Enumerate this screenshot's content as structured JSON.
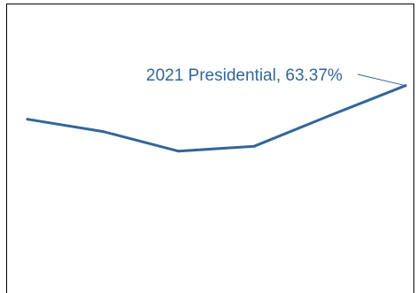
{
  "chart_data": {
    "type": "line",
    "series": [
      {
        "values": [
          62.0,
          61.5,
          60.7,
          60.9,
          62.15,
          63.37
        ]
      }
    ],
    "ylim": [
      55.0,
      65.7
    ],
    "grid": false,
    "legend": "none",
    "annotation": {
      "text": "2021 Presidential, 63.37%",
      "point_index": 5
    }
  },
  "colors": {
    "series": "#336699",
    "frame": "#000000",
    "background": "#ffffff"
  }
}
